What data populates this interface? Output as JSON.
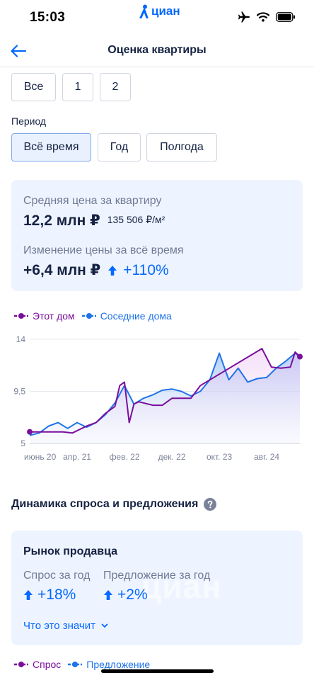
{
  "status": {
    "time": "15:03"
  },
  "brand": {
    "name": "циан"
  },
  "nav": {
    "title": "Оценка квартиры"
  },
  "rooms": [
    "Все",
    "1",
    "2"
  ],
  "period": {
    "label": "Период",
    "options": [
      "Всё время",
      "Год",
      "Полгода"
    ],
    "selected": "Всё время"
  },
  "stats": {
    "avg_label": "Средняя цена за квартиру",
    "avg_price": "12,2 млн ₽",
    "price_per_m2": "135 506 ₽/м²",
    "change_label": "Изменение цены за всё время",
    "change_abs": "+6,4 млн ₽",
    "change_pct": "+110%"
  },
  "legend": {
    "this_house": "Этот дом",
    "nearby": "Соседние дома"
  },
  "colors": {
    "accent": "#0468ff",
    "this_house": "#7a0f9b",
    "nearby": "#1f73e8",
    "card_bg": "#eef4ff",
    "text": "#152242"
  },
  "chart_data": {
    "type": "line",
    "ylim": [
      5,
      14
    ],
    "yticks": [
      "14",
      "9,5",
      "5"
    ],
    "xticks": [
      "июнь 20",
      "апр. 21",
      "фев. 22",
      "дек. 22",
      "окт. 23",
      "авг. 24"
    ],
    "x_range": [
      "2020-06",
      "2025-03"
    ],
    "series": [
      {
        "name": "Этот дом",
        "color": "#7a0f9b",
        "x": [
          "2020-06",
          "2020-09",
          "2021-01",
          "2021-03",
          "2021-06",
          "2021-08",
          "2021-10",
          "2021-12",
          "2022-01",
          "2022-02",
          "2022-03",
          "2022-04",
          "2022-05",
          "2022-06",
          "2022-08",
          "2022-10",
          "2022-12",
          "2023-02",
          "2023-04",
          "2023-06",
          "2024-07",
          "2024-09",
          "2024-11",
          "2025-01",
          "2025-02",
          "2025-03"
        ],
        "values": [
          6.0,
          6.0,
          6.0,
          5.9,
          6.5,
          6.8,
          7.6,
          8.2,
          10.0,
          10.3,
          6.8,
          8.4,
          8.6,
          8.5,
          8.3,
          8.3,
          8.9,
          8.9,
          8.9,
          10.0,
          13.2,
          11.6,
          11.5,
          11.6,
          12.9,
          12.5
        ]
      },
      {
        "name": "Соседние дома",
        "color": "#1f73e8",
        "x": [
          "2020-06",
          "2020-08",
          "2020-10",
          "2020-12",
          "2021-02",
          "2021-04",
          "2021-06",
          "2021-08",
          "2021-10",
          "2021-12",
          "2022-02",
          "2022-04",
          "2022-06",
          "2022-08",
          "2022-10",
          "2022-12",
          "2023-02",
          "2023-04",
          "2023-06",
          "2023-08",
          "2023-10",
          "2023-12",
          "2024-02",
          "2024-04",
          "2024-06",
          "2024-08",
          "2024-10",
          "2024-12",
          "2025-02",
          "2025-03"
        ],
        "values": [
          5.7,
          5.9,
          6.5,
          6.8,
          6.3,
          6.8,
          6.4,
          6.8,
          7.5,
          8.5,
          10.0,
          8.4,
          8.9,
          9.2,
          9.6,
          9.7,
          9.5,
          9.1,
          9.5,
          10.5,
          12.8,
          10.5,
          11.5,
          10.3,
          10.6,
          10.7,
          11.5,
          12.1,
          12.8,
          12.5
        ]
      }
    ]
  },
  "market": {
    "section_title": "Динамика спроса и предложения",
    "card_title": "Рынок продавца",
    "demand_label": "Спрос за год",
    "demand_value": "+18%",
    "supply_label": "Предложение за год",
    "supply_value": "+2%",
    "link": "Что это значит",
    "watermark": "циан"
  },
  "legend2": {
    "demand": "Спрос",
    "supply": "Предложение"
  }
}
